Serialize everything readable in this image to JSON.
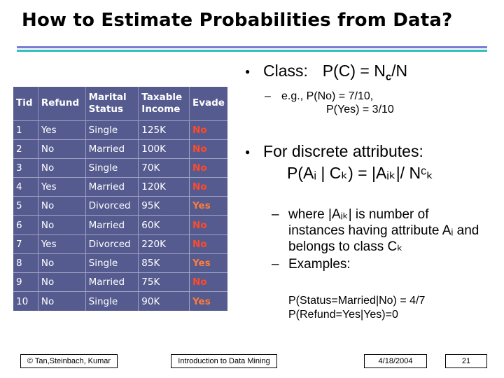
{
  "slide": {
    "title": "How to Estimate Probabilities from Data?"
  },
  "table": {
    "headers": [
      "Tid",
      "Refund",
      "Marital Status",
      "Taxable Income",
      "Evade"
    ],
    "rows": [
      [
        "1",
        "Yes",
        "Single",
        "125K",
        "No"
      ],
      [
        "2",
        "No",
        "Married",
        "100K",
        "No"
      ],
      [
        "3",
        "No",
        "Single",
        "70K",
        "No"
      ],
      [
        "4",
        "Yes",
        "Married",
        "120K",
        "No"
      ],
      [
        "5",
        "No",
        "Divorced",
        "95K",
        "Yes"
      ],
      [
        "6",
        "No",
        "Married",
        "60K",
        "No"
      ],
      [
        "7",
        "Yes",
        "Divorced",
        "220K",
        "No"
      ],
      [
        "8",
        "No",
        "Single",
        "85K",
        "Yes"
      ],
      [
        "9",
        "No",
        "Married",
        "75K",
        "No"
      ],
      [
        "10",
        "No",
        "Single",
        "90K",
        "Yes"
      ]
    ]
  },
  "bullets": {
    "class_label": "Class:",
    "class_formula_prefix": "P(C) = N",
    "class_formula_sub": "c",
    "class_formula_suffix": "/N",
    "eg_line1": "e.g.,  P(No) = 7/10,",
    "eg_line2": "P(Yes) = 3/10",
    "discrete_label": "For discrete attributes:",
    "discrete_formula": "P(Aᵢ | Cₖ) = |Aᵢₖ|/ Nᶜₖ",
    "where_line": "where |Aᵢₖ| is number of instances having attribute Aᵢ and belongs to class Cₖ",
    "examples_label": "Examples:",
    "example1": "P(Status=Married|No) = 4/7",
    "example2": "P(Refund=Yes|Yes)=0"
  },
  "footer": {
    "copyright": "© Tan,Steinbach, Kumar",
    "course": "Introduction to Data Mining",
    "date": "4/18/2004",
    "page": "21"
  }
}
